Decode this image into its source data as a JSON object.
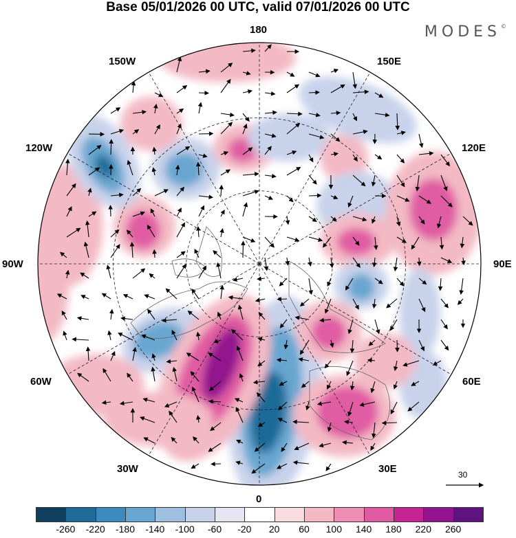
{
  "header": {
    "title": "Base 05/01/2026 00 UTC, valid 07/01/2026 00 UTC",
    "brand": "MODES",
    "brand_mark": "©"
  },
  "longitude_labels": {
    "top": "180",
    "top_left": "150W",
    "top_right": "150E",
    "upper_left": "120W",
    "upper_right": "120E",
    "left": "90W",
    "right": "90E",
    "lower_left": "60W",
    "lower_right": "60E",
    "bottom_left": "30W",
    "bottom_right": "30E",
    "bottom": "0"
  },
  "reference_vector": {
    "value": "30"
  },
  "colorbar": {
    "colors": [
      "#0f3e5f",
      "#1f6a98",
      "#3b8bbf",
      "#67a6d0",
      "#9fbfe0",
      "#c8d2ea",
      "#e6e6f2",
      "#ffffff",
      "#f9dcdf",
      "#f3b9c4",
      "#ee8eb4",
      "#e05ba3",
      "#c62392",
      "#93148e",
      "#5f137f"
    ],
    "ticks": [
      "-260",
      "-220",
      "-180",
      "-140",
      "-100",
      "-60",
      "-20",
      "20",
      "60",
      "100",
      "140",
      "180",
      "220",
      "260"
    ]
  },
  "anomaly_colors": {
    "strong_neg": "#1f6a98",
    "mid_neg": "#67a6d0",
    "weak_neg": "#c8d2ea",
    "weak_pos": "#f3b9c4",
    "mid_pos": "#e05ba3",
    "strong_pos": "#93148e"
  }
}
